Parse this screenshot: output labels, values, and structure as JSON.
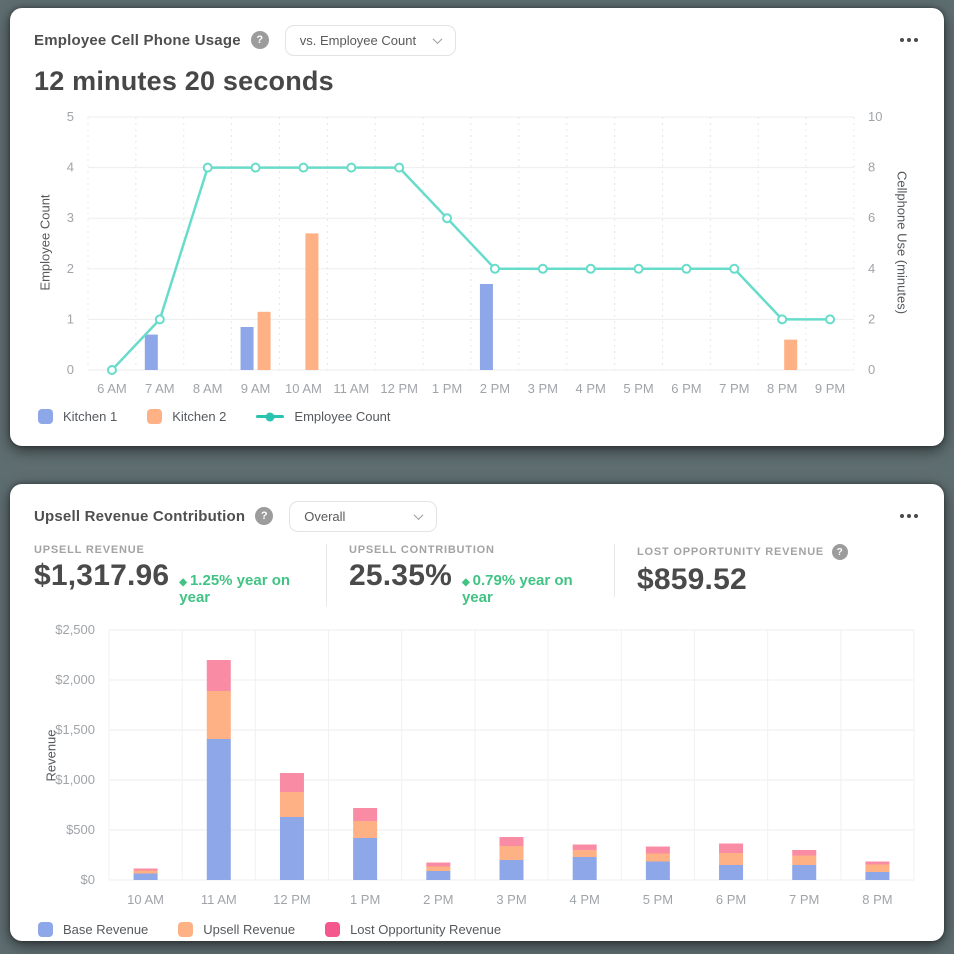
{
  "page": {
    "background_color": "#5E6D70"
  },
  "icons": {
    "help": "?",
    "delta_up": "◆"
  },
  "cards": {
    "cell_phone": {
      "title": "Employee Cell Phone Usage",
      "dropdown_value": "vs. Employee Count",
      "metric": "12 minutes 20 seconds",
      "legend": [
        {
          "label": "Kitchen 1",
          "type": "box",
          "color": "#8DA7E9"
        },
        {
          "label": "Kitchen 2",
          "type": "box",
          "color": "#FDB185"
        },
        {
          "label": "Employee Count",
          "type": "line",
          "color": "#2BC3B0"
        }
      ]
    },
    "upsell": {
      "title": "Upsell Revenue Contribution",
      "dropdown_value": "Overall",
      "delta_color": "#41C384",
      "stats": [
        {
          "label": "UPSELL REVENUE",
          "value": "$1,317.96",
          "delta": "1.25% year on year"
        },
        {
          "label": "UPSELL CONTRIBUTION",
          "value": "25.35%",
          "delta": "0.79% year on year"
        },
        {
          "label": "LOST OPPORTUNITY REVENUE",
          "value": "$859.52"
        }
      ],
      "legend": [
        {
          "label": "Base Revenue",
          "type": "box",
          "color": "#8DA7E9"
        },
        {
          "label": "Upsell Revenue",
          "type": "box",
          "color": "#FDB185"
        },
        {
          "label": "Lost Opportunity Revenue",
          "type": "box",
          "color": "#F4578D"
        }
      ]
    }
  },
  "chart_data": [
    {
      "type": "line",
      "subtype": "combo-bar-line",
      "title": "Employee Cell Phone Usage vs. Employee Count",
      "categories": [
        "6 AM",
        "7 AM",
        "8 AM",
        "9 AM",
        "10 AM",
        "11 AM",
        "12 PM",
        "1 PM",
        "2 PM",
        "3 PM",
        "4 PM",
        "5 PM",
        "6 PM",
        "7 PM",
        "8 PM",
        "9 PM"
      ],
      "left_axis": {
        "label": "Employee Count",
        "ylim": [
          0,
          5
        ],
        "ticks": [
          0,
          1,
          2,
          3,
          4,
          5
        ]
      },
      "right_axis": {
        "label": "Cellphone Use (minutes)",
        "ylim": [
          0,
          10
        ],
        "ticks": [
          0,
          2,
          4,
          6,
          8,
          10
        ]
      },
      "grid": true,
      "legend_position": "bottom",
      "series": [
        {
          "name": "Kitchen 1",
          "chart": "bar",
          "axis": "right",
          "color": "#8DA7E9",
          "values": [
            0,
            1.4,
            0,
            1.7,
            0,
            0,
            0,
            0,
            3.4,
            0,
            0,
            0,
            0,
            0,
            0,
            0
          ]
        },
        {
          "name": "Kitchen 2",
          "chart": "bar",
          "axis": "right",
          "color": "#FDB185",
          "values": [
            0,
            0,
            0,
            2.3,
            5.4,
            0,
            0,
            0,
            0,
            0,
            0,
            0,
            0,
            0,
            1.2,
            0
          ]
        },
        {
          "name": "Employee Count",
          "chart": "line",
          "axis": "left",
          "color": "#68DCCB",
          "values": [
            0,
            1,
            4,
            4,
            4,
            4,
            4,
            3,
            2,
            2,
            2,
            2,
            2,
            2,
            1,
            1
          ]
        }
      ]
    },
    {
      "type": "bar",
      "stacked": true,
      "title": "Upsell Revenue Contribution",
      "categories": [
        "10 AM",
        "11 AM",
        "12 PM",
        "1 PM",
        "2 PM",
        "3 PM",
        "4 PM",
        "5 PM",
        "6 PM",
        "7 PM",
        "8 PM"
      ],
      "xlabel": "",
      "ylabel": "Revenue",
      "ylim": [
        0,
        2500
      ],
      "ytick_step": 500,
      "yticks": [
        "$0",
        "$500",
        "$1,000",
        "$1,500",
        "$2,000",
        "$2,500"
      ],
      "grid": true,
      "legend_position": "bottom",
      "series": [
        {
          "name": "Base Revenue",
          "color": "#8DA7E9",
          "values": [
            65,
            1410,
            630,
            420,
            90,
            200,
            230,
            185,
            150,
            150,
            80
          ]
        },
        {
          "name": "Upsell Revenue",
          "color": "#FDB185",
          "values": [
            30,
            480,
            250,
            170,
            45,
            140,
            70,
            80,
            120,
            95,
            75
          ]
        },
        {
          "name": "Lost Opportunity Revenue",
          "color": "#F98CA4",
          "values": [
            20,
            310,
            190,
            130,
            40,
            90,
            55,
            70,
            95,
            55,
            30
          ]
        }
      ]
    }
  ]
}
